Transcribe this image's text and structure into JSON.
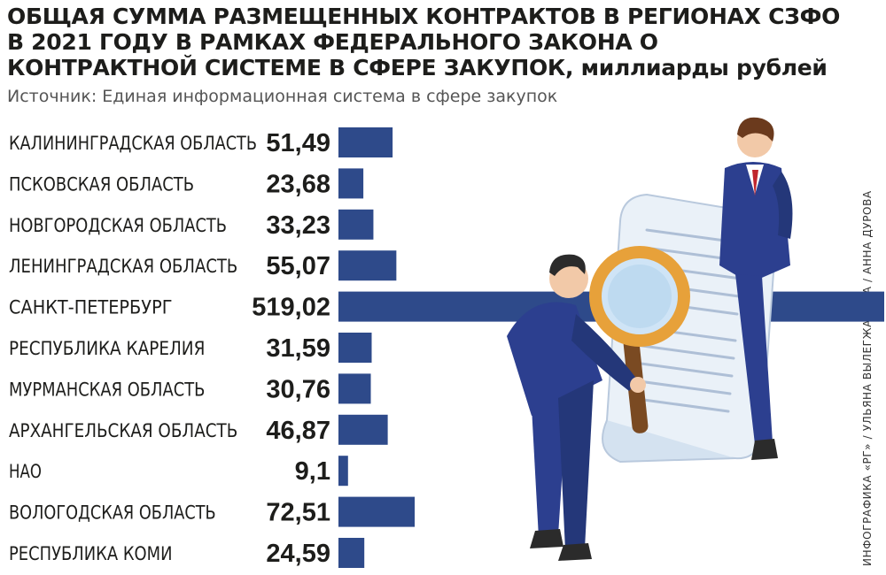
{
  "title": {
    "text": "ОБЩАЯ СУММА РАЗМЕЩЕННЫХ КОНТРАКТОВ В РЕГИОНАХ СЗФО В 2021 ГОДУ В РАМКАХ ФЕДЕРАЛЬНОГО ЗАКОНА О КОНТРАКТНОЙ СИСТЕМЕ В СФЕРЕ ЗАКУПОК,",
    "unit": "миллиарды рублей"
  },
  "source": "Источник: Единая информационная система в сфере закупок",
  "credit": "ИНФОГРАФИКА «РГ» / УЛЬЯНА ВЫЛЕГЖАНИНА / АННА ДУРОВА",
  "colors": {
    "bar": "#2e4a8a",
    "text": "#1d1d1b"
  },
  "illustration": {
    "icons": [
      "businessman-icon",
      "magnifying-glass-icon",
      "document-scroll-icon"
    ]
  },
  "chart_data": {
    "type": "bar",
    "orientation": "horizontal",
    "categories": [
      "КАЛИНИНГРАДСКАЯ ОБЛАСТЬ",
      "ПСКОВСКАЯ ОБЛАСТЬ",
      "НОВГОРОДСКАЯ ОБЛАСТЬ",
      "ЛЕНИНГРАДСКАЯ ОБЛАСТЬ",
      "САНКТ-ПЕТЕРБУРГ",
      "РЕСПУБЛИКА КАРЕЛИЯ",
      "МУРМАНСКАЯ ОБЛАСТЬ",
      "АРХАНГЕЛЬСКАЯ ОБЛАСТЬ",
      "НАО",
      "ВОЛОГОДСКАЯ ОБЛАСТЬ",
      "РЕСПУБЛИКА КОМИ"
    ],
    "values": [
      51.49,
      23.68,
      33.23,
      55.07,
      519.02,
      31.59,
      30.76,
      46.87,
      9.1,
      72.51,
      24.59
    ],
    "value_labels": [
      "51,49",
      "23,68",
      "33,23",
      "55,07",
      "519,02",
      "31,59",
      "30,76",
      "46,87",
      "9,1",
      "72,51",
      "24,59"
    ],
    "grid": false,
    "legend": "none"
  }
}
